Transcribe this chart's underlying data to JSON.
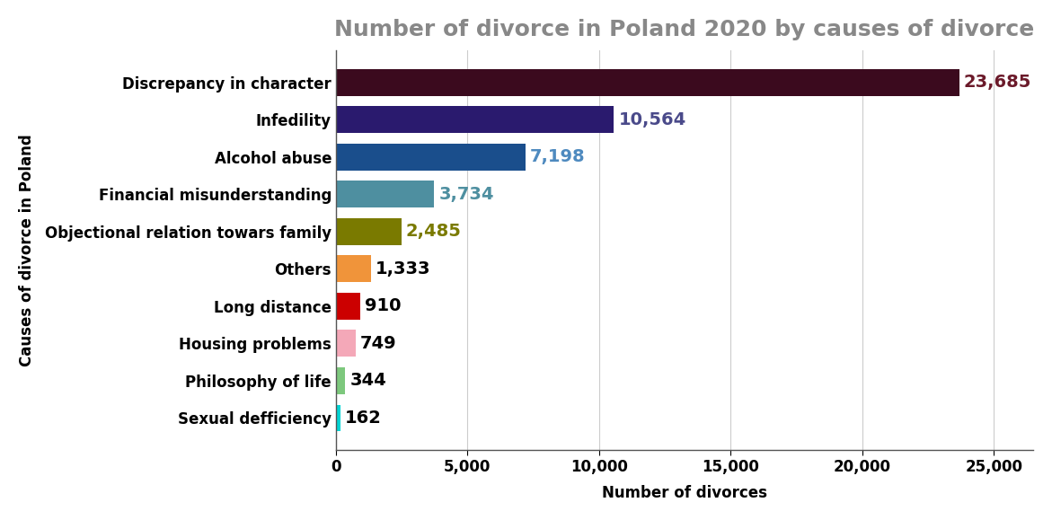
{
  "title": "Number of divorce in Poland 2020 by causes of divorce",
  "xlabel": "Number of divorces",
  "ylabel": "Causes of divorce in Poland",
  "categories": [
    "Sexual defficiency",
    "Philosophy of life",
    "Housing problems",
    "Long distance",
    "Others",
    "Objectional relation towars family",
    "Financial misunderstanding",
    "Alcohol abuse",
    "Infedility",
    "Discrepancy in character"
  ],
  "values": [
    162,
    344,
    749,
    910,
    1333,
    2485,
    3734,
    7198,
    10564,
    23685
  ],
  "bar_colors": [
    "#00D4D4",
    "#7DC87D",
    "#F4A8B8",
    "#CC0000",
    "#F0943A",
    "#7A7A00",
    "#4E8FA0",
    "#1A4E8C",
    "#2A1A6E",
    "#3B0A1E"
  ],
  "value_colors": [
    "#000000",
    "#000000",
    "#000000",
    "#000000",
    "#000000",
    "#7A7A00",
    "#4E8FA0",
    "#4E8ABF",
    "#4A4A8A",
    "#6B1A2A"
  ],
  "xlim": [
    0,
    26500
  ],
  "title_fontsize": 18,
  "label_fontsize": 12,
  "tick_fontsize": 12,
  "value_fontsize": 14,
  "bar_height": 0.72,
  "background_color": "#ffffff",
  "grid_color": "#cccccc"
}
